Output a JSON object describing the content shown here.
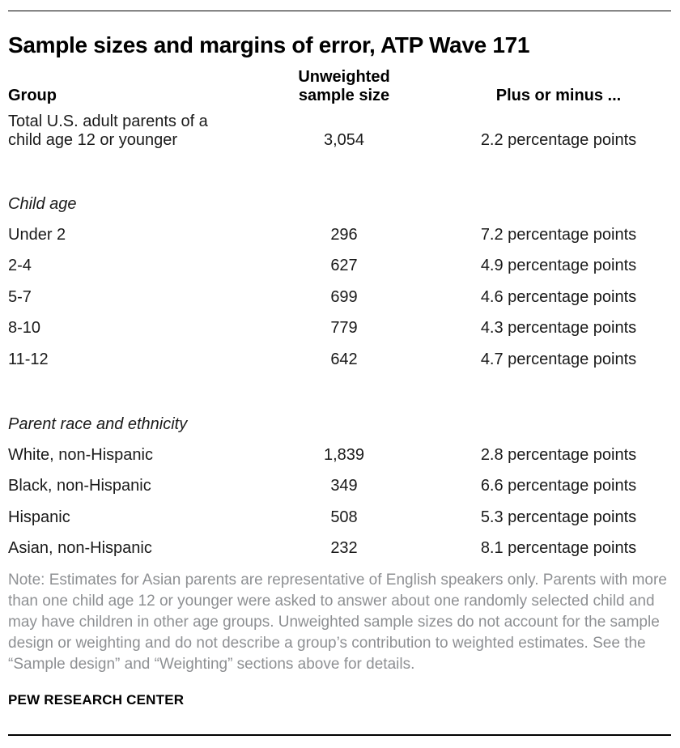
{
  "page": {
    "title": "Sample sizes and margins of error, ATP Wave 171",
    "note": "Note: Estimates for Asian parents are representative of English speakers only. Parents with more than one child age 12 or younger were asked to answer about one randomly selected child and may have children in other age groups. Unweighted sample sizes do not account for the sample design or weighting and do not describe a group’s contribution to weighted estimates. See the “Sample design” and “Weighting” sections above for details.",
    "source": "PEW RESEARCH CENTER"
  },
  "table": {
    "headers": {
      "group": "Group",
      "sample_line1": "Unweighted",
      "sample_line2": "sample size",
      "moe": "Plus or minus ..."
    },
    "total_row": {
      "group": "Total U.S. adult parents of a child age 12 or younger",
      "n": "3,054",
      "moe": "2.2 percentage points"
    },
    "sections": [
      {
        "label": "Child age",
        "rows": [
          {
            "group": "Under 2",
            "n": "296",
            "moe": "7.2 percentage points"
          },
          {
            "group": "2-4",
            "n": "627",
            "moe": "4.9 percentage points"
          },
          {
            "group": "5-7",
            "n": "699",
            "moe": "4.6 percentage points"
          },
          {
            "group": "8-10",
            "n": "779",
            "moe": "4.3 percentage points"
          },
          {
            "group": "11-12",
            "n": "642",
            "moe": "4.7 percentage points"
          }
        ]
      },
      {
        "label": "Parent race and ethnicity",
        "rows": [
          {
            "group": "White, non-Hispanic",
            "n": "1,839",
            "moe": "2.8 percentage points"
          },
          {
            "group": "Black, non-Hispanic",
            "n": "349",
            "moe": "6.6 percentage points"
          },
          {
            "group": "Hispanic",
            "n": "508",
            "moe": "5.3 percentage points"
          },
          {
            "group": "Asian, non-Hispanic",
            "n": "232",
            "moe": "8.1 percentage points"
          }
        ]
      }
    ]
  },
  "chart_data": {
    "type": "table",
    "title": "Sample sizes and margins of error, ATP Wave 171",
    "columns": [
      "Group",
      "Unweighted sample size",
      "Plus or minus ..."
    ],
    "rows": [
      [
        "Total U.S. adult parents of a child age 12 or younger",
        3054,
        "2.2 percentage points"
      ],
      [
        "Under 2",
        296,
        "7.2 percentage points"
      ],
      [
        "2-4",
        627,
        "4.9 percentage points"
      ],
      [
        "5-7",
        699,
        "4.6 percentage points"
      ],
      [
        "8-10",
        779,
        "4.3 percentage points"
      ],
      [
        "11-12",
        642,
        "4.7 percentage points"
      ],
      [
        "White, non-Hispanic",
        1839,
        "2.8 percentage points"
      ],
      [
        "Black, non-Hispanic",
        349,
        "6.6 percentage points"
      ],
      [
        "Hispanic",
        508,
        "5.3 percentage points"
      ],
      [
        "Asian, non-Hispanic",
        232,
        "8.1 percentage points"
      ]
    ],
    "section_groups": {
      "Child age": [
        "Under 2",
        "2-4",
        "5-7",
        "8-10",
        "11-12"
      ],
      "Parent race and ethnicity": [
        "White, non-Hispanic",
        "Black, non-Hispanic",
        "Hispanic",
        "Asian, non-Hispanic"
      ]
    },
    "note": "Note: Estimates for Asian parents are representative of English speakers only. Parents with more than one child age 12 or younger were asked to answer about one randomly selected child and may have children in other age groups. Unweighted sample sizes do not account for the sample design or weighting and do not describe a group’s contribution to weighted estimates. See the “Sample design” and “Weighting” sections above for details.",
    "source": "PEW RESEARCH CENTER"
  }
}
